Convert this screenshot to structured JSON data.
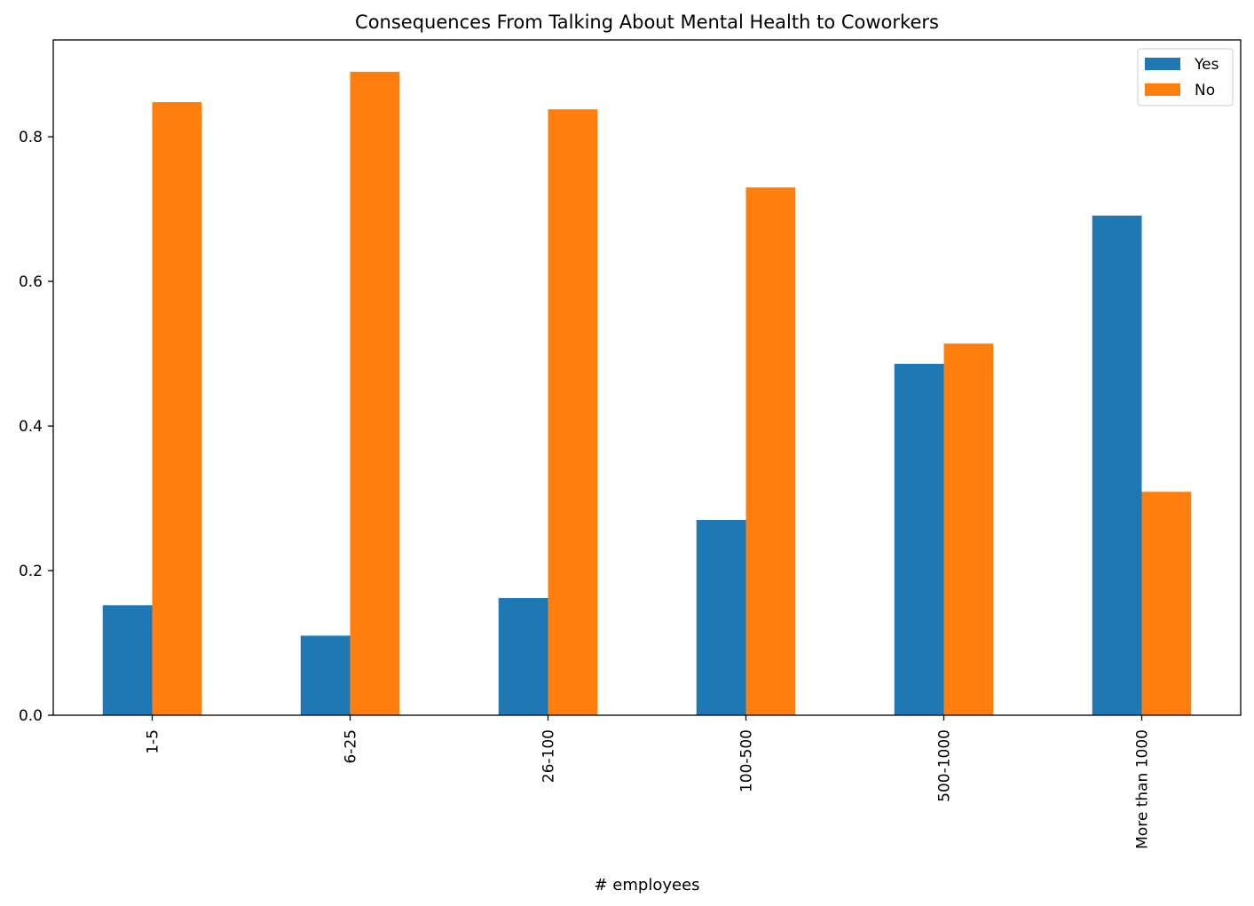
{
  "chart_data": {
    "type": "bar",
    "title": "Consequences From Talking About Mental Health to Coworkers",
    "xlabel": "# employees",
    "ylabel": "",
    "categories": [
      "1-5",
      "6-25",
      "26-100",
      "100-500",
      "500-1000",
      "More than 1000"
    ],
    "series": [
      {
        "name": "Yes",
        "color": "#1f77b4",
        "values": [
          0.152,
          0.11,
          0.162,
          0.27,
          0.486,
          0.691
        ]
      },
      {
        "name": "No",
        "color": "#ff7f0e",
        "values": [
          0.848,
          0.89,
          0.838,
          0.73,
          0.514,
          0.309
        ]
      }
    ],
    "ylim": [
      0,
      0.934
    ],
    "yticks": [
      0.0,
      0.2,
      0.4,
      0.6,
      0.8
    ],
    "ytick_labels": [
      "0.0",
      "0.2",
      "0.4",
      "0.6",
      "0.8"
    ],
    "xtick_rotation": "vertical",
    "legend_position": "top-right",
    "grid": false
  }
}
